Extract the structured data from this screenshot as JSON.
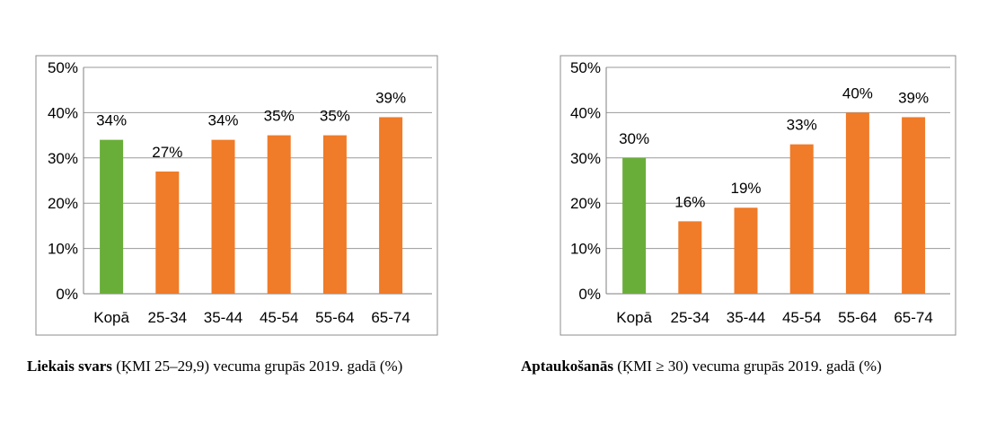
{
  "chart_data": [
    {
      "type": "bar",
      "title": "Liekais svars (ĶMI 25–29,9) vecuma grupās 2019. gadā (%)",
      "title_bold": "Liekais svars",
      "title_rest": " (ĶMI 25–29,9) vecuma grupās 2019. gadā (%)",
      "categories": [
        "Kopā",
        "25-34",
        "35-44",
        "45-54",
        "55-64",
        "65-74"
      ],
      "values": [
        34,
        27,
        34,
        35,
        35,
        39
      ],
      "data_labels": [
        "34%",
        "27%",
        "34%",
        "35%",
        "35%",
        "39%"
      ],
      "bar_colors": [
        "#6AAE3A",
        "#F07B28",
        "#F07B28",
        "#F07B28",
        "#F07B28",
        "#F07B28"
      ],
      "ylim": [
        0,
        50
      ],
      "yticks": [
        "0%",
        "10%",
        "20%",
        "30%",
        "40%",
        "50%"
      ],
      "grid": true,
      "legend": "none"
    },
    {
      "type": "bar",
      "title": "Aptaukošanās (ĶMI ≥ 30) vecuma grupās 2019. gadā (%)",
      "title_bold": "Aptaukošanās",
      "title_rest": " (ĶMI ≥ 30) vecuma grupās 2019. gadā (%)",
      "categories": [
        "Kopā",
        "25-34",
        "35-44",
        "45-54",
        "55-64",
        "65-74"
      ],
      "values": [
        30,
        16,
        19,
        33,
        40,
        39
      ],
      "data_labels": [
        "30%",
        "16%",
        "19%",
        "33%",
        "40%",
        "39%"
      ],
      "bar_colors": [
        "#6AAE3A",
        "#F07B28",
        "#F07B28",
        "#F07B28",
        "#F07B28",
        "#F07B28"
      ],
      "ylim": [
        0,
        50
      ],
      "yticks": [
        "0%",
        "10%",
        "20%",
        "30%",
        "40%",
        "50%"
      ],
      "grid": true,
      "legend": "none"
    }
  ]
}
